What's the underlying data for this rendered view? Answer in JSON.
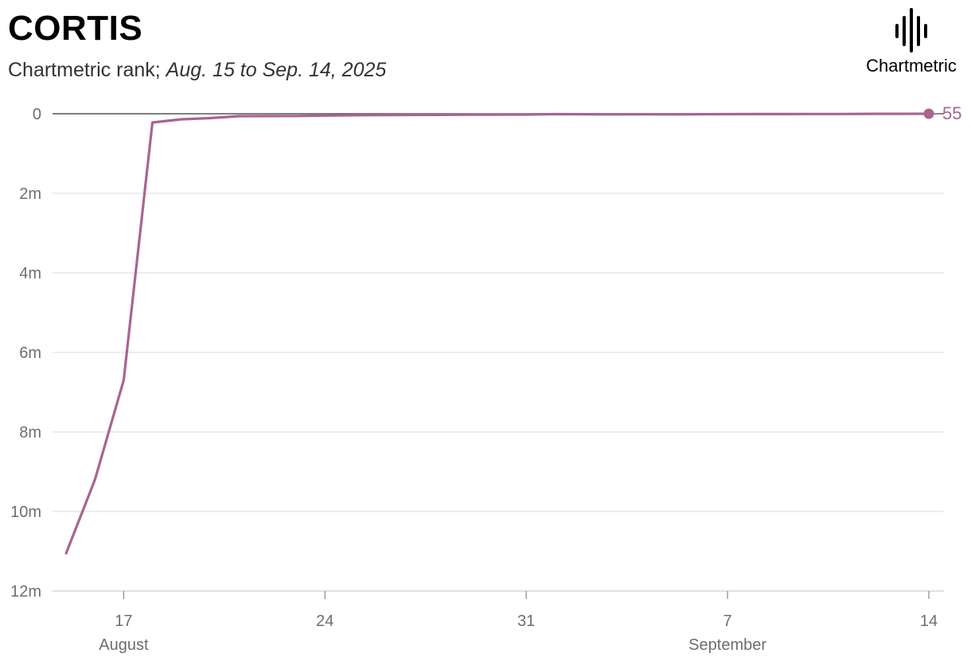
{
  "header": {
    "title": "CORTIS",
    "subtitle_prefix": "Chartmetric rank; ",
    "subtitle_range": "Aug. 15 to Sep. 14, 2025"
  },
  "logo": {
    "text": "Chartmetric",
    "icon": "chartmetric-waveform-icon"
  },
  "colors": {
    "line": "#a8658f",
    "grid": "#e2e2e2",
    "axis": "#888888",
    "tick_text": "#6e6e6e"
  },
  "chart_data": {
    "type": "line",
    "title": "CORTIS",
    "subtitle": "Chartmetric rank; Aug. 15 to Sep. 14, 2025",
    "y_inverted": true,
    "ylim": [
      0,
      12000000
    ],
    "xlim": [
      "2025-08-14",
      "2025-09-14"
    ],
    "y_ticks": [
      {
        "value": 0,
        "label": "0"
      },
      {
        "value": 2000000,
        "label": "2m"
      },
      {
        "value": 4000000,
        "label": "4m"
      },
      {
        "value": 6000000,
        "label": "6m"
      },
      {
        "value": 8000000,
        "label": "8m"
      },
      {
        "value": 10000000,
        "label": "10m"
      },
      {
        "value": 12000000,
        "label": "12m"
      }
    ],
    "x_ticks": [
      {
        "value": "2025-08-17",
        "label": "17"
      },
      {
        "value": "2025-08-24",
        "label": "24"
      },
      {
        "value": "2025-08-31",
        "label": "31"
      },
      {
        "value": "2025-09-07",
        "label": "7"
      },
      {
        "value": "2025-09-14",
        "label": "14"
      }
    ],
    "month_labels": [
      {
        "value": "2025-08-17",
        "label": "August"
      },
      {
        "value": "2025-09-07",
        "label": "September"
      }
    ],
    "series": [
      {
        "points": [
          [
            "2025-08-15",
            11050000
          ],
          [
            "2025-08-16",
            9200000
          ],
          [
            "2025-08-17",
            6700000
          ],
          [
            "2025-08-18",
            220000
          ],
          [
            "2025-08-19",
            140000
          ],
          [
            "2025-08-20",
            110000
          ],
          [
            "2025-08-21",
            60000
          ],
          [
            "2025-08-22",
            58000
          ],
          [
            "2025-08-23",
            55000
          ],
          [
            "2025-08-24",
            45000
          ],
          [
            "2025-08-25",
            38000
          ],
          [
            "2025-08-26",
            32000
          ],
          [
            "2025-08-27",
            30000
          ],
          [
            "2025-08-28",
            28000
          ],
          [
            "2025-08-29",
            24000
          ],
          [
            "2025-08-30",
            22000
          ],
          [
            "2025-08-31",
            20000
          ],
          [
            "2025-09-01",
            10000
          ],
          [
            "2025-09-02",
            12000
          ],
          [
            "2025-09-03",
            15000
          ],
          [
            "2025-09-04",
            14000
          ],
          [
            "2025-09-05",
            15000
          ],
          [
            "2025-09-06",
            12000
          ],
          [
            "2025-09-07",
            10000
          ],
          [
            "2025-09-08",
            9000
          ],
          [
            "2025-09-09",
            8000
          ],
          [
            "2025-09-10",
            7000
          ],
          [
            "2025-09-11",
            5000
          ],
          [
            "2025-09-12",
            2000
          ],
          [
            "2025-09-13",
            1000
          ],
          [
            "2025-09-14",
            55
          ]
        ]
      }
    ],
    "end_label": "55"
  }
}
